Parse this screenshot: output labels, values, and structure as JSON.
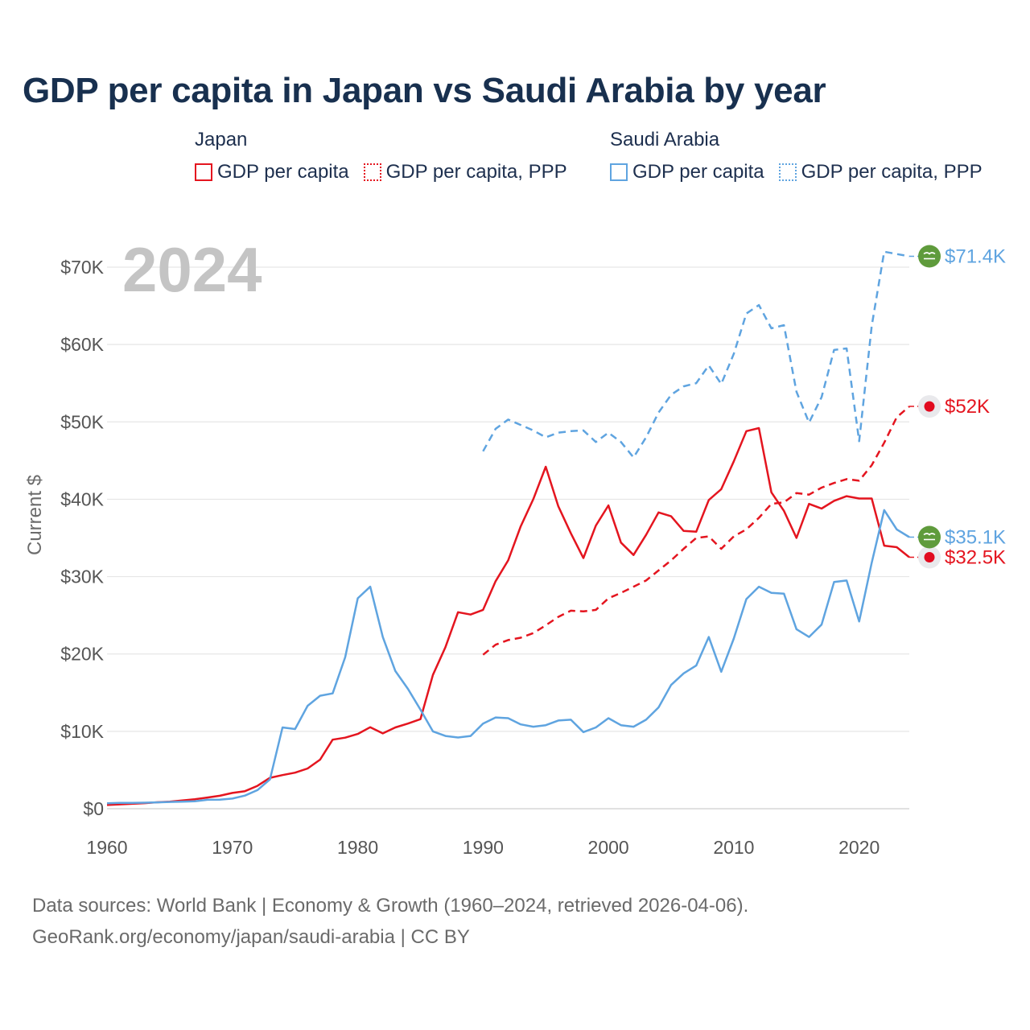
{
  "title": "GDP per capita in Japan vs Saudi Arabia by year",
  "legend": {
    "groups": [
      {
        "name": "Japan",
        "color": "#e4151f",
        "items": [
          {
            "label": "GDP per capita",
            "style": "solid"
          },
          {
            "label": "GDP per capita, PPP",
            "style": "dotted"
          }
        ]
      },
      {
        "name": "Saudi Arabia",
        "color": "#5fa4e0",
        "items": [
          {
            "label": "GDP per capita",
            "style": "solid"
          },
          {
            "label": "GDP per capita, PPP",
            "style": "dotted"
          }
        ]
      }
    ]
  },
  "source": {
    "line1": "Data sources: World Bank | Economy & Growth (1960–2024, retrieved 2026-04-06).",
    "line2": "GeoRank.org/economy/japan/saudi-arabia | CC BY"
  },
  "chart_data": {
    "type": "line",
    "title": "GDP per capita in Japan vs Saudi Arabia by year",
    "year_label": "2024",
    "xlabel": "",
    "ylabel": "Current $",
    "xlim": [
      1960,
      2024
    ],
    "ylim": [
      0,
      70000
    ],
    "x_ticks": [
      1960,
      1970,
      1980,
      1990,
      2000,
      2010,
      2020
    ],
    "y_ticks": [
      {
        "value": 0,
        "label": "$0"
      },
      {
        "value": 10000,
        "label": "$10K"
      },
      {
        "value": 20000,
        "label": "$20K"
      },
      {
        "value": 30000,
        "label": "$30K"
      },
      {
        "value": 40000,
        "label": "$40K"
      },
      {
        "value": 50000,
        "label": "$50K"
      },
      {
        "value": 60000,
        "label": "$60K"
      },
      {
        "value": 70000,
        "label": "$70K"
      }
    ],
    "grid": true,
    "series": [
      {
        "name": "Japan GDP per capita",
        "country": "Japan",
        "flag": "japan-flag",
        "color": "#e4151f",
        "dash": "solid",
        "start_year": 1960,
        "end_label": "$32.5K",
        "values": [
          480,
          560,
          630,
          720,
          830,
          920,
          1060,
          1230,
          1450,
          1670,
          2040,
          2270,
          2950,
          3990,
          4350,
          4660,
          5200,
          6340,
          8920,
          9180,
          9660,
          10540,
          9740,
          10510,
          11000,
          11580,
          17300,
          20900,
          25400,
          25100,
          25700,
          29400,
          32100,
          36500,
          40000,
          44200,
          39100,
          35600,
          32400,
          36600,
          39200,
          34400,
          32800,
          35400,
          38300,
          37800,
          35900,
          35800,
          39900,
          41300,
          44900,
          48800,
          49200,
          40900,
          38500,
          35000,
          39400,
          38800,
          39800,
          40400,
          40100,
          40100,
          34000,
          33800,
          32500
        ]
      },
      {
        "name": "Japan GDP per capita, PPP",
        "country": "Japan",
        "flag": "japan-flag",
        "color": "#e4151f",
        "dash": "dashed",
        "start_year": 1990,
        "end_label": "$52K",
        "values": [
          19900,
          21200,
          21800,
          22100,
          22700,
          23700,
          24800,
          25600,
          25500,
          25700,
          27200,
          27900,
          28700,
          29500,
          30800,
          32100,
          33600,
          35000,
          35200,
          33600,
          35200,
          36100,
          37600,
          39400,
          39600,
          40800,
          40600,
          41500,
          42100,
          42600,
          42400,
          44400,
          47300,
          50600,
          52000
        ]
      },
      {
        "name": "Saudi Arabia GDP per capita",
        "country": "Saudi Arabia",
        "flag": "saudi-flag",
        "color": "#5fa4e0",
        "dash": "solid",
        "start_year": 1960,
        "end_label": "$35.1K",
        "values": [
          700,
          750,
          760,
          780,
          820,
          870,
          920,
          970,
          1150,
          1180,
          1310,
          1700,
          2400,
          3800,
          10500,
          10300,
          13300,
          14600,
          14900,
          19600,
          27200,
          28700,
          22200,
          17800,
          15500,
          12800,
          10000,
          9400,
          9200,
          9400,
          11000,
          11800,
          11700,
          10900,
          10600,
          10800,
          11400,
          11500,
          9900,
          10500,
          11700,
          10800,
          10600,
          11500,
          13100,
          16000,
          17500,
          18500,
          22200,
          17700,
          22000,
          27100,
          28700,
          27900,
          27800,
          23200,
          22200,
          23800,
          29300,
          29500,
          24200,
          31800,
          38600,
          36100,
          35100
        ]
      },
      {
        "name": "Saudi Arabia GDP per capita, PPP",
        "country": "Saudi Arabia",
        "flag": "saudi-flag",
        "color": "#5fa4e0",
        "dash": "dashed",
        "start_year": 1990,
        "end_label": "$71.4K",
        "values": [
          46200,
          49100,
          50300,
          49600,
          48900,
          48000,
          48600,
          48800,
          48900,
          47400,
          48600,
          47400,
          45400,
          48000,
          51200,
          53500,
          54600,
          55000,
          57300,
          54900,
          58800,
          64000,
          65100,
          62100,
          62500,
          53900,
          49900,
          53200,
          59300,
          59500,
          47500,
          62400,
          72000,
          71700,
          71400
        ]
      }
    ]
  }
}
